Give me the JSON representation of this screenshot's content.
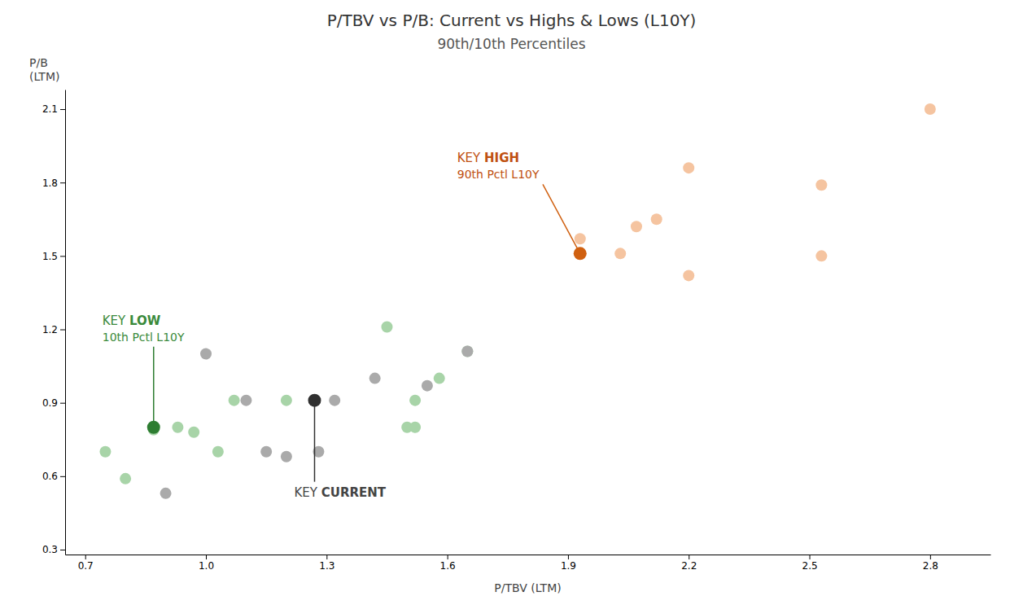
{
  "chart_data": {
    "type": "scatter",
    "title": "P/TBV vs P/B: Current vs Highs & Lows (L10Y)",
    "subtitle": "90th/10th Percentiles",
    "xlabel": "P/TBV (LTM)",
    "ylabel": "P/B\n(LTM)",
    "xlim": [
      0.65,
      2.95
    ],
    "ylim": [
      0.28,
      2.18
    ],
    "xticks": [
      0.7,
      {
        "value": 1.0,
        "label": "1.0"
      },
      1.3,
      1.6,
      1.9,
      2.2,
      2.5,
      2.8
    ],
    "yticks": [
      0.3,
      0.6,
      0.9,
      1.2,
      1.5,
      1.8,
      2.1
    ],
    "grid": false,
    "series": [
      {
        "color": "#F5C4A0",
        "x": [
          1.93,
          2.03,
          2.07,
          2.12,
          2.2,
          2.2,
          2.53,
          2.53,
          2.8
        ],
        "values": [
          1.57,
          1.51,
          1.62,
          1.65,
          1.42,
          1.86,
          1.79,
          1.5,
          2.1
        ]
      },
      {
        "color": "#D06010",
        "x": [
          1.93
        ],
        "values": [
          1.51
        ],
        "annotation": {
          "text": "KEY HIGH",
          "subtext": "90th Pctl L10Y",
          "color": "#C05010"
        }
      },
      {
        "color": "#A8D4A8",
        "x": [
          0.75,
          0.8,
          0.87,
          0.93,
          0.97,
          1.03,
          1.07,
          1.2,
          1.45,
          1.5,
          1.58,
          1.65,
          1.52,
          1.52
        ],
        "values": [
          0.7,
          0.59,
          0.79,
          0.8,
          0.78,
          0.7,
          0.91,
          0.91,
          1.21,
          0.8,
          1.0,
          1.11,
          0.91,
          0.8
        ]
      },
      {
        "color": "#2E7D32",
        "x": [
          0.87
        ],
        "values": [
          0.8
        ],
        "annotation": {
          "text": "KEY LOW",
          "subtext": "10th Pctl L10Y",
          "color": "#3A8A3A"
        }
      },
      {
        "color": "#AAAAAA",
        "x": [
          0.9,
          1.0,
          1.1,
          1.15,
          1.2,
          1.28,
          1.32,
          1.42,
          1.55,
          1.65
        ],
        "values": [
          0.53,
          1.1,
          0.91,
          0.7,
          0.68,
          0.7,
          0.91,
          1.0,
          0.97,
          1.11
        ]
      },
      {
        "color": "#303030",
        "x": [
          1.27
        ],
        "values": [
          0.91
        ],
        "annotation": {
          "text": "KEY CURRENT",
          "color": "#444444"
        }
      }
    ]
  }
}
